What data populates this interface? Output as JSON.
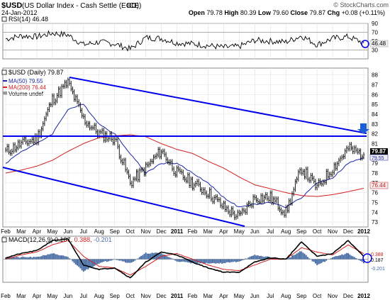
{
  "header": {
    "symbol": "$USD",
    "name": "(US Dollar Index - Cash Settle (EOD))",
    "exchange": "ICE",
    "date": "24-Jan-2012",
    "ohlc": "Open 79.78   High 80.39   Low 79.60   Close 79.87   Chg +0.08 (+0.11%)",
    "ohlc_parts": {
      "open_label": "Open",
      "open": "79.78",
      "high_label": "High",
      "high": "80.39",
      "low_label": "Low",
      "low": "79.60",
      "close_label": "Close",
      "close": "79.87",
      "chg_label": "Chg",
      "chg": "+0.08 (+0.11%)"
    },
    "watermark": "© StockCharts.com"
  },
  "panels": {
    "rsi": {
      "label": "RSI(14) 46.48",
      "current": 46.48,
      "ticks": [
        30,
        50,
        70,
        90
      ]
    },
    "price": {
      "legend_title": "$USD (Daily) 79.87",
      "legend_ma50": "MA(50) 79.55",
      "legend_ma200": "MA(200) 76.44",
      "legend_volume": "Volume undef",
      "last": "79.87",
      "ma50_value": "79.55",
      "ma200_value": "76.44",
      "ticks": [
        73,
        74,
        75,
        76,
        77,
        78,
        79,
        80,
        81,
        82,
        83,
        84,
        85,
        86,
        87,
        88
      ]
    },
    "macd": {
      "label_prefix": "MACD(12,26,9)",
      "label_macd": "0.187,",
      "label_signal": "0.388,",
      "label_hist": "-0.201",
      "values": [
        "0.388",
        "0.187",
        "-0.201"
      ]
    }
  },
  "x_axis": {
    "labels": [
      "Feb",
      "Mar",
      "Apr",
      "May",
      "Jun",
      "Jul",
      "Aug",
      "Sep",
      "Oct",
      "Nov",
      "Dec",
      "2011",
      "Feb",
      "Mar",
      "Apr",
      "May",
      "Jun",
      "Jul",
      "Aug",
      "Sep",
      "Oct",
      "Nov",
      "Dec",
      "2012"
    ]
  },
  "colors": {
    "price_bars": "#000000",
    "ma50": "#1a27a8",
    "ma200": "#d32020",
    "trendlines": "#0000ee",
    "macd_line": "#000000",
    "signal_line": "#d32020",
    "histogram": "#4a6fa5",
    "label_bg": "#eeeeee"
  },
  "chart_data": [
    {
      "type": "line",
      "title": "RSI(14) 46.48",
      "x": [
        "Feb 2010",
        "Mar 2010",
        "Apr 2010",
        "May 2010",
        "Jun 2010",
        "Jul 2010",
        "Aug 2010",
        "Sep 2010",
        "Oct 2010",
        "Nov 2010",
        "Dec 2010",
        "Jan 2011",
        "Feb 2011",
        "Mar 2011",
        "Apr 2011",
        "May 2011",
        "Jun 2011",
        "Jul 2011",
        "Aug 2011",
        "Sep 2011",
        "Oct 2011",
        "Nov 2011",
        "Dec 2011",
        "Jan 2012"
      ],
      "series": [
        {
          "name": "RSI(14)",
          "values": [
            55,
            62,
            60,
            68,
            64,
            42,
            48,
            44,
            32,
            58,
            56,
            46,
            44,
            40,
            36,
            38,
            52,
            50,
            48,
            62,
            42,
            56,
            60,
            46
          ]
        }
      ],
      "ylim": [
        10,
        90
      ]
    },
    {
      "type": "line",
      "title": "$USD (Daily) 79.87",
      "x": [
        "Feb 2010",
        "Mar 2010",
        "Apr 2010",
        "May 2010",
        "Jun 2010",
        "Jul 2010",
        "Aug 2010",
        "Sep 2010",
        "Oct 2010",
        "Nov 2010",
        "Dec 2010",
        "Jan 2011",
        "Feb 2011",
        "Mar 2011",
        "Apr 2011",
        "May 2011",
        "Jun 2011",
        "Jul 2011",
        "Aug 2011",
        "Sep 2011",
        "Oct 2011",
        "Nov 2011",
        "Dec 2011",
        "Jan 2012"
      ],
      "series": [
        {
          "name": "$USD",
          "values": [
            80.2,
            81.0,
            81.5,
            85.5,
            87.2,
            83.5,
            82.0,
            81.5,
            77.0,
            78.5,
            80.3,
            78.0,
            77.0,
            76.0,
            74.5,
            73.5,
            75.5,
            75.5,
            74.0,
            78.5,
            76.5,
            78.5,
            80.5,
            79.87
          ]
        },
        {
          "name": "MA(50) 79.55",
          "values": [
            79.0,
            80.2,
            81.0,
            82.0,
            84.5,
            85.0,
            83.0,
            82.0,
            80.0,
            78.0,
            79.0,
            79.0,
            78.0,
            77.0,
            75.5,
            74.5,
            74.8,
            75.0,
            74.5,
            75.5,
            77.0,
            77.5,
            79.0,
            79.55
          ]
        },
        {
          "name": "MA(200) 76.44",
          "values": [
            78.0,
            78.3,
            78.7,
            79.3,
            80.2,
            81.0,
            81.6,
            81.8,
            81.9,
            81.7,
            81.0,
            80.4,
            80.0,
            79.2,
            78.5,
            77.6,
            76.8,
            76.4,
            76.0,
            75.7,
            75.6,
            75.8,
            76.1,
            76.44
          ]
        }
      ],
      "ylim": [
        72.5,
        88.7
      ]
    },
    {
      "type": "line",
      "title": "MACD(12,26,9) 0.187, 0.388, -0.201",
      "x": [
        "Feb 2010",
        "Mar 2010",
        "Apr 2010",
        "May 2010",
        "Jun 2010",
        "Jul 2010",
        "Aug 2010",
        "Sep 2010",
        "Oct 2010",
        "Nov 2010",
        "Dec 2010",
        "Jan 2011",
        "Feb 2011",
        "Mar 2011",
        "Apr 2011",
        "May 2011",
        "Jun 2011",
        "Jul 2011",
        "Aug 2011",
        "Sep 2011",
        "Oct 2011",
        "Nov 2011",
        "Dec 2011",
        "Jan 2012"
      ],
      "series": [
        {
          "name": "MACD",
          "values": [
            0.1,
            0.4,
            0.6,
            1.3,
            1.4,
            -0.4,
            -0.7,
            -0.6,
            -1.3,
            -0.2,
            0.5,
            0.3,
            -0.2,
            -0.6,
            -0.9,
            -0.9,
            -0.2,
            0.1,
            0.0,
            1.2,
            0.2,
            0.4,
            1.3,
            0.187
          ]
        },
        {
          "name": "Signal",
          "values": [
            0.0,
            0.3,
            0.5,
            1.0,
            1.3,
            0.2,
            -0.5,
            -0.6,
            -1.1,
            -0.5,
            0.2,
            0.4,
            0.0,
            -0.4,
            -0.7,
            -0.8,
            -0.4,
            0.0,
            0.0,
            0.8,
            0.5,
            0.3,
            1.0,
            0.388
          ]
        }
      ],
      "ylim": [
        -1.6,
        1.6
      ]
    }
  ]
}
